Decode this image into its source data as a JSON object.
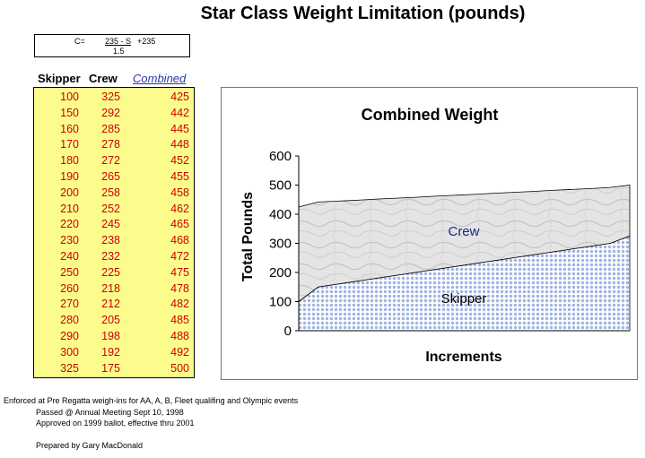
{
  "title": "Star Class Weight Limitation (pounds)",
  "formula": {
    "c": "C=",
    "numerator": "235 - S",
    "plus": "+235",
    "denominator": "1.5"
  },
  "table": {
    "headers": {
      "skipper": "Skipper",
      "crew": "Crew",
      "combined": "Combined"
    },
    "rows": [
      [
        "100",
        "325",
        "425"
      ],
      [
        "150",
        "292",
        "442"
      ],
      [
        "160",
        "285",
        "445"
      ],
      [
        "170",
        "278",
        "448"
      ],
      [
        "180",
        "272",
        "452"
      ],
      [
        "190",
        "265",
        "455"
      ],
      [
        "200",
        "258",
        "458"
      ],
      [
        "210",
        "252",
        "462"
      ],
      [
        "220",
        "245",
        "465"
      ],
      [
        "230",
        "238",
        "468"
      ],
      [
        "240",
        "232",
        "472"
      ],
      [
        "250",
        "225",
        "475"
      ],
      [
        "260",
        "218",
        "478"
      ],
      [
        "270",
        "212",
        "482"
      ],
      [
        "280",
        "205",
        "485"
      ],
      [
        "290",
        "198",
        "488"
      ],
      [
        "300",
        "192",
        "492"
      ],
      [
        "325",
        "175",
        "500"
      ]
    ]
  },
  "chart_data": {
    "type": "area",
    "stacked": true,
    "title": "Combined Weight",
    "xlabel": "Increments",
    "ylabel": "Total Pounds",
    "ylim": [
      0,
      600
    ],
    "yticks": [
      0,
      100,
      200,
      300,
      400,
      500,
      600
    ],
    "grid": false,
    "series": [
      {
        "name": "Skipper",
        "values": [
          100,
          150,
          160,
          170,
          180,
          190,
          200,
          210,
          220,
          230,
          240,
          250,
          260,
          270,
          280,
          290,
          300,
          325
        ],
        "fill": "#c9d6f0"
      },
      {
        "name": "Crew",
        "values": [
          325,
          292,
          285,
          278,
          272,
          265,
          258,
          252,
          245,
          238,
          232,
          225,
          218,
          212,
          205,
          198,
          192,
          175
        ],
        "fill": "#dcdcdc"
      }
    ]
  },
  "notes": {
    "line1": "Enforced at Pre Regatta weigh-ins for AA, A, B, Fleet qualifing and Olympic events",
    "line2": "Passed @ Annual Meeting Sept 10, 1998",
    "line3": "Approved on 1999 ballot, effective thru 2001",
    "line4": "Prepared by Gary MacDonald"
  }
}
